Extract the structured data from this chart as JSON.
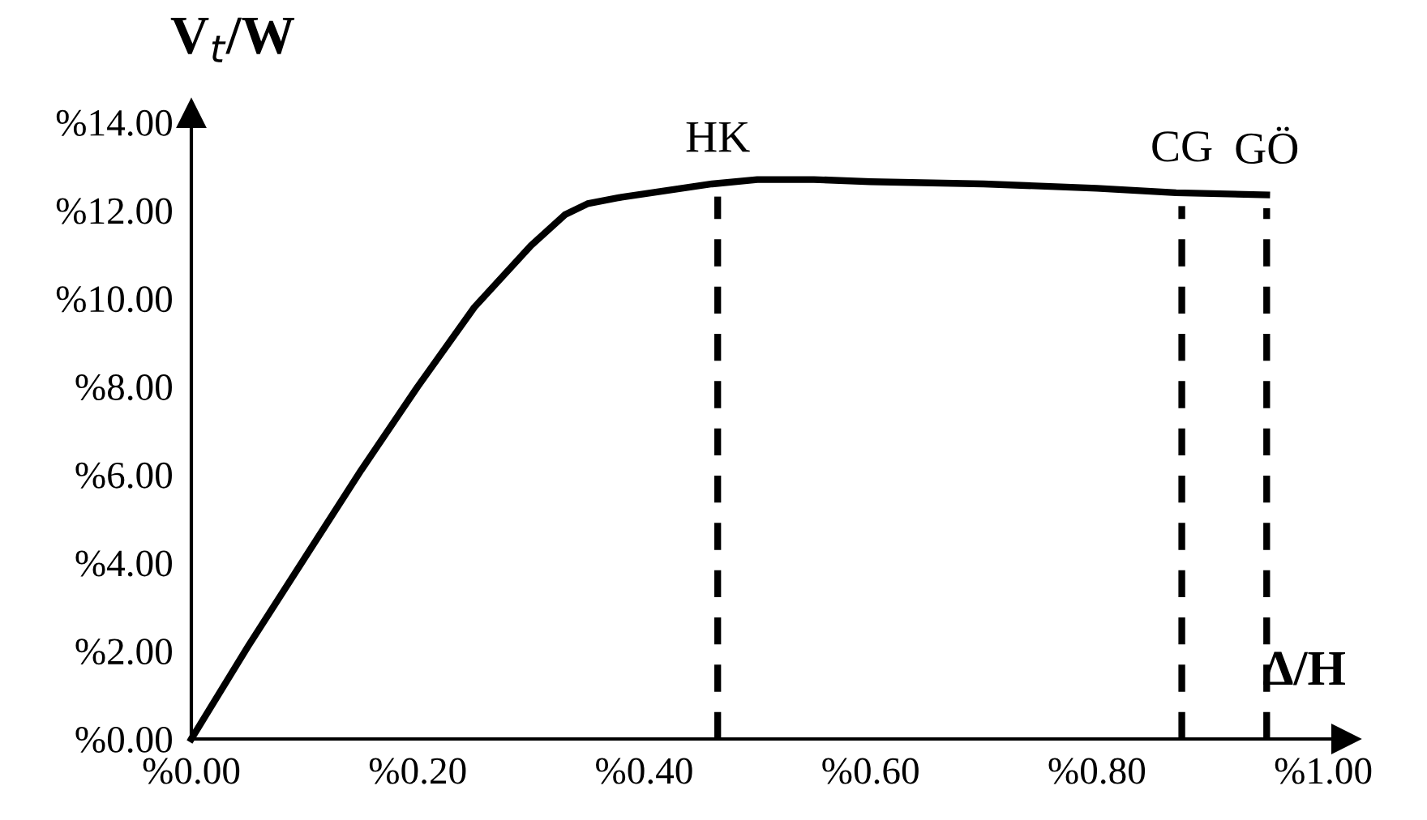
{
  "chart_data": {
    "type": "line",
    "xlabel": "Δ/H",
    "ylabel": "V$_{t}$/W",
    "x": [
      0,
      0.05,
      0.1,
      0.15,
      0.2,
      0.25,
      0.3,
      0.33,
      0.35,
      0.38,
      0.42,
      0.46,
      0.5,
      0.55,
      0.6,
      0.7,
      0.8,
      0.87,
      0.95
    ],
    "series": [
      {
        "color": "#000000",
        "values": [
          0,
          2.1,
          4.1,
          6.1,
          8.0,
          9.8,
          11.2,
          11.9,
          12.15,
          12.3,
          12.45,
          12.6,
          12.7,
          12.7,
          12.65,
          12.6,
          12.5,
          12.4,
          12.35
        ]
      }
    ],
    "xlim": [
      0,
      1.02
    ],
    "ylim": [
      0,
      14.2
    ],
    "xticks": [
      {
        "value": 0,
        "label": "%0.00"
      },
      {
        "value": 0.2,
        "label": "%0.20"
      },
      {
        "value": 0.4,
        "label": "%0.40"
      },
      {
        "value": 0.6,
        "label": "%0.60"
      },
      {
        "value": 0.8,
        "label": "%0.80"
      },
      {
        "value": 1.0,
        "label": "%1.00"
      }
    ],
    "yticks": [
      {
        "value": 0,
        "label": "%0.00"
      },
      {
        "value": 2,
        "label": "%2.00"
      },
      {
        "value": 4,
        "label": "%4.00"
      },
      {
        "value": 6,
        "label": "%6.00"
      },
      {
        "value": 8,
        "label": "%8.00"
      },
      {
        "value": 10,
        "label": "%10.00"
      },
      {
        "value": 12,
        "label": "%12.00"
      },
      {
        "value": 14,
        "label": "%14.00"
      }
    ],
    "ref_lines": [
      {
        "axis": "x",
        "value": 0.465,
        "label": "HK",
        "line_style": "dashed"
      },
      {
        "axis": "x",
        "value": 0.875,
        "label": "CG",
        "line_style": "dashed"
      },
      {
        "axis": "x",
        "value": 0.95,
        "label": "GÖ",
        "line_style": "dashed"
      }
    ],
    "grid": false,
    "legend": false,
    "marker": "none",
    "line_style": "solid"
  }
}
